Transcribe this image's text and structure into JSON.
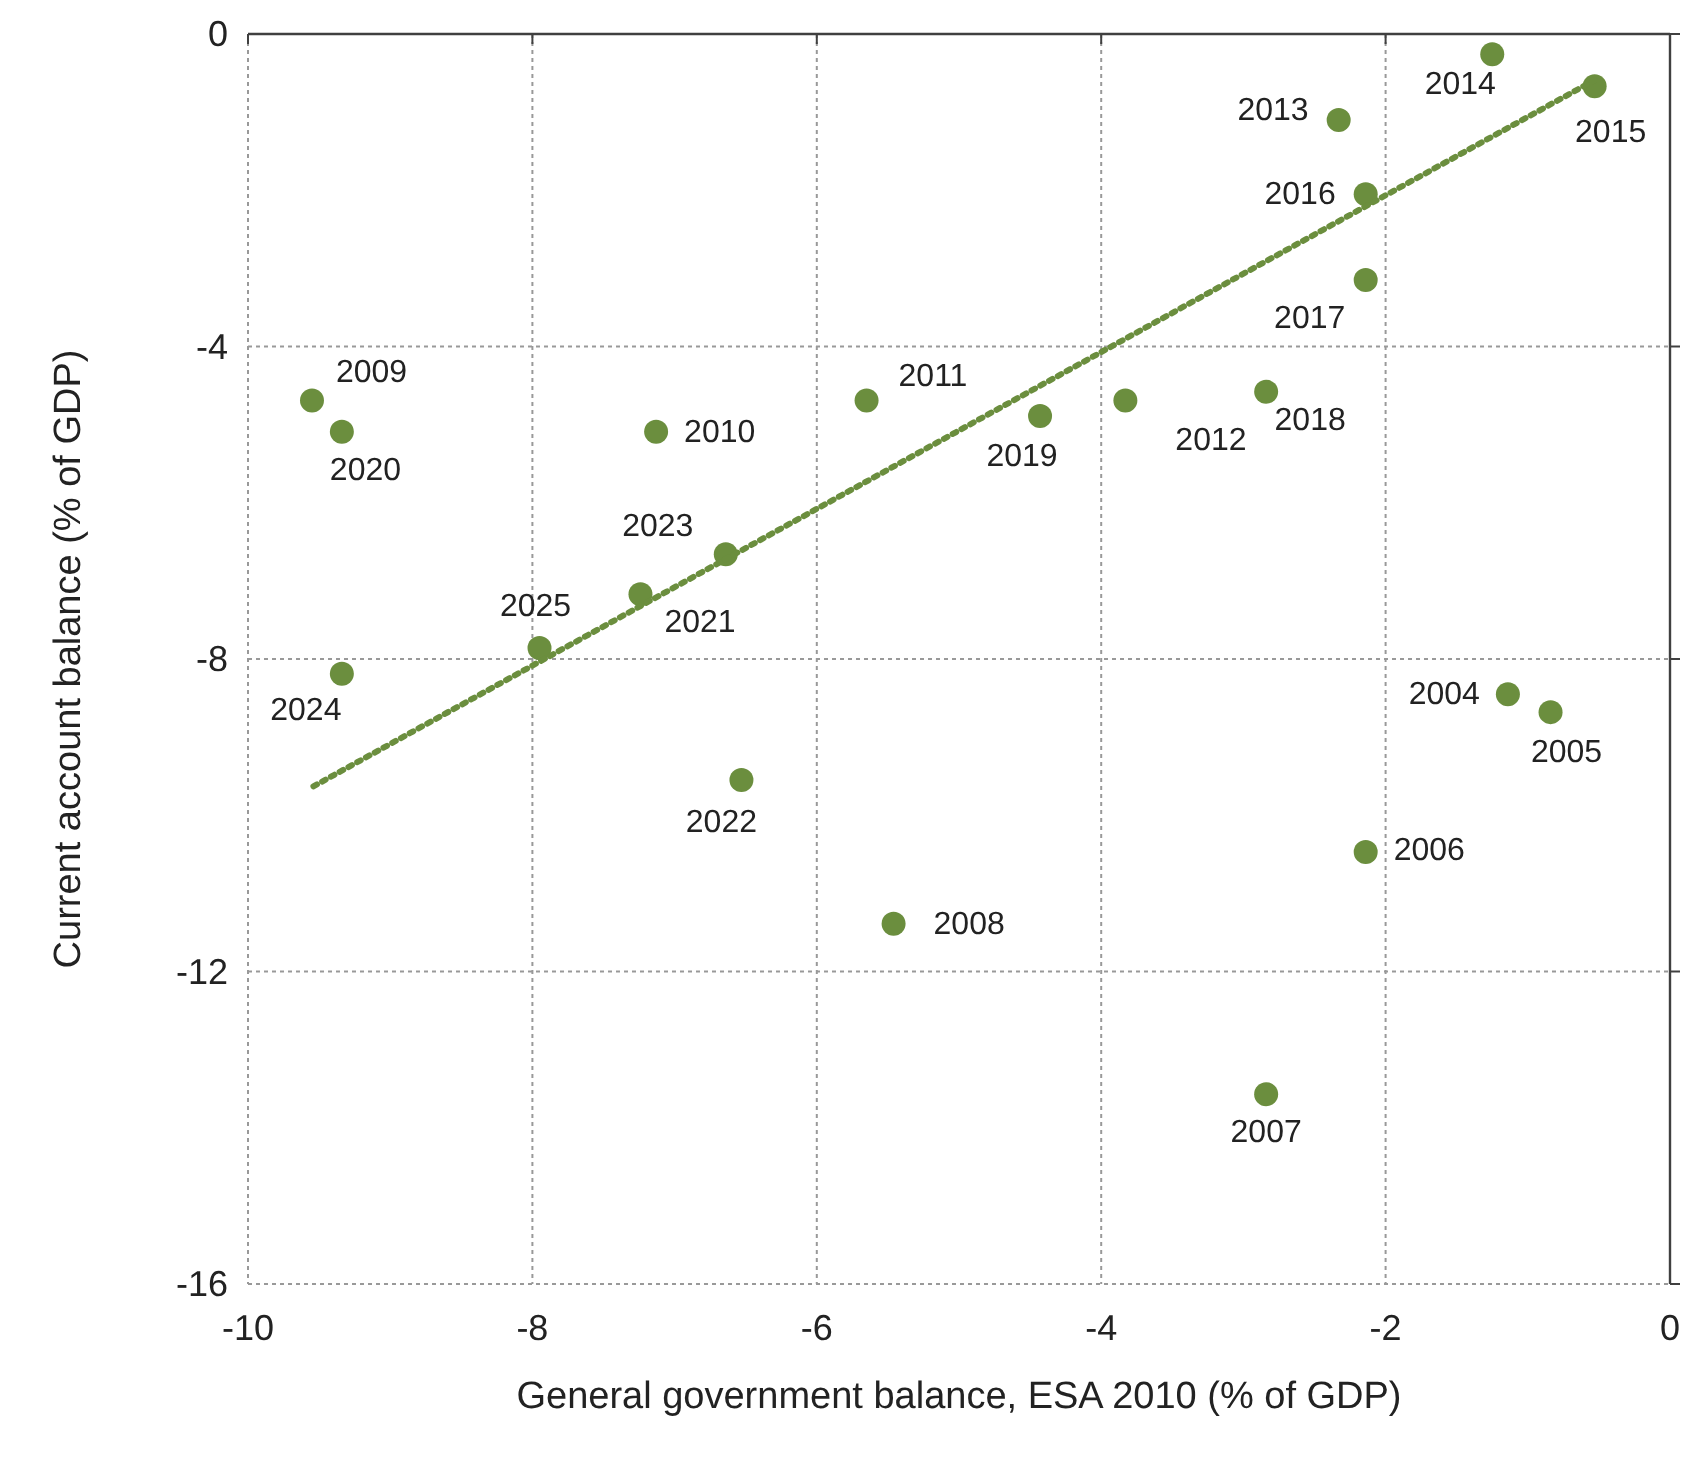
{
  "chart_data": {
    "type": "scatter",
    "xlabel": "General government balance, ESA 2010 (% of GDP)",
    "ylabel": "Current account balance (% of GDP)",
    "xlim": [
      -10,
      0
    ],
    "ylim": [
      -16,
      0
    ],
    "xticks": [
      -10,
      -8,
      -6,
      -4,
      -2,
      0
    ],
    "yticks": [
      -16,
      -12,
      -8,
      -4,
      0
    ],
    "grid": true,
    "series": [
      {
        "color": "#6b8e3e",
        "marker": "circle",
        "x": [
          -1.14,
          -0.84,
          -2.14,
          -2.84,
          -5.46,
          -9.55,
          -7.13,
          -5.65,
          -3.83,
          -2.33,
          -1.25,
          -0.53,
          -2.14,
          -2.14,
          -2.84,
          -4.43,
          -9.34,
          -7.24,
          -6.53,
          -6.64,
          -9.34,
          -7.95
        ],
        "values": [
          -8.45,
          -8.68,
          -10.47,
          -13.57,
          -11.39,
          -4.69,
          -5.09,
          -4.69,
          -4.69,
          -1.1,
          -0.26,
          -0.67,
          -2.05,
          -3.15,
          -4.58,
          -4.89,
          -5.09,
          -7.17,
          -9.55,
          -6.66,
          -8.19,
          -7.86
        ]
      },
      {
        "type": "line",
        "color": "#6b8e3e",
        "line_style": "dotted",
        "x": [
          -9.54,
          -0.53
        ],
        "values": [
          -9.63,
          -0.59
        ]
      }
    ],
    "annotations": [
      {
        "text": "2004",
        "x": -1.14,
        "y": -8.45
      },
      {
        "text": "2005",
        "x": -0.84,
        "y": -8.68
      },
      {
        "text": "2006",
        "x": -2.14,
        "y": -10.47
      },
      {
        "text": "2007",
        "x": -2.84,
        "y": -13.57
      },
      {
        "text": "2008",
        "x": -5.46,
        "y": -11.39
      },
      {
        "text": "2009",
        "x": -9.55,
        "y": -4.69
      },
      {
        "text": "2010",
        "x": -7.13,
        "y": -5.09
      },
      {
        "text": "2011",
        "x": -5.65,
        "y": -4.69
      },
      {
        "text": "2012",
        "x": -3.83,
        "y": -4.69
      },
      {
        "text": "2013",
        "x": -2.33,
        "y": -1.1
      },
      {
        "text": "2014",
        "x": -1.25,
        "y": -0.26
      },
      {
        "text": "2015",
        "x": -0.53,
        "y": -0.67
      },
      {
        "text": "2016",
        "x": -2.14,
        "y": -2.05
      },
      {
        "text": "2017",
        "x": -2.14,
        "y": -3.15
      },
      {
        "text": "2018",
        "x": -2.84,
        "y": -4.58
      },
      {
        "text": "2019",
        "x": -4.43,
        "y": -4.89
      },
      {
        "text": "2020",
        "x": -9.34,
        "y": -5.09
      },
      {
        "text": "2021",
        "x": -7.24,
        "y": -7.17
      },
      {
        "text": "2022",
        "x": -6.53,
        "y": -9.55
      },
      {
        "text": "2023",
        "x": -6.64,
        "y": -6.66
      },
      {
        "text": "2024",
        "x": -9.34,
        "y": -8.19
      },
      {
        "text": "2025",
        "x": -7.95,
        "y": -7.86
      }
    ]
  }
}
